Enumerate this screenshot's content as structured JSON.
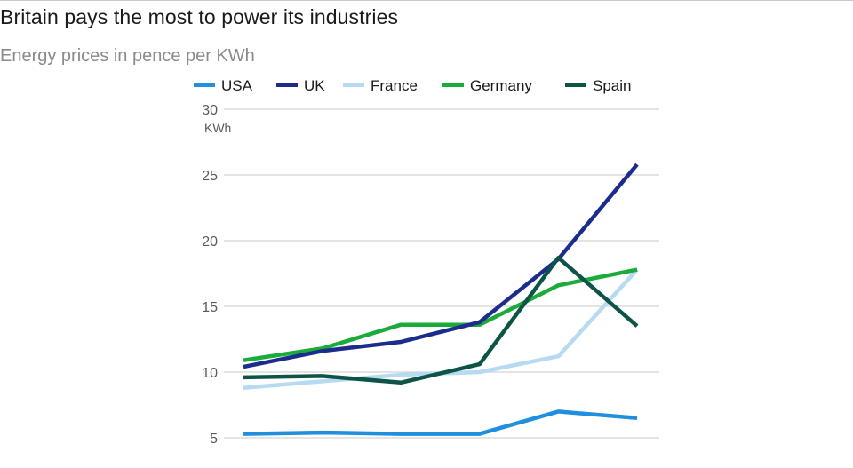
{
  "header": {
    "title": "Britain pays the most to power its industries",
    "subtitle": "Energy prices in pence per KWh"
  },
  "chart_data": {
    "type": "line",
    "title": "Britain pays the most to power its industries",
    "subtitle": "Energy prices in pence per KWh",
    "xlabel": "",
    "ylabel": "KWh",
    "ylim": [
      5,
      30
    ],
    "yticks": [
      5,
      10,
      15,
      20,
      25,
      30
    ],
    "ytick_labels": [
      "5",
      "10",
      "15",
      "20",
      "25",
      "30"
    ],
    "x": [
      1,
      2,
      3,
      4,
      5,
      6
    ],
    "grid": true,
    "legend_position": "top",
    "series": [
      {
        "name": "USA",
        "color": "#1f8fde",
        "values": [
          5.3,
          5.4,
          5.3,
          5.3,
          7.0,
          6.5
        ]
      },
      {
        "name": "UK",
        "color": "#1c2c8c",
        "values": [
          10.4,
          11.6,
          12.3,
          13.8,
          18.6,
          25.8
        ]
      },
      {
        "name": "France",
        "color": "#b6daf2",
        "values": [
          8.8,
          9.3,
          9.8,
          10.0,
          11.2,
          17.8
        ]
      },
      {
        "name": "Germany",
        "color": "#1aab3b",
        "values": [
          10.9,
          11.8,
          13.6,
          13.6,
          16.6,
          17.8
        ]
      },
      {
        "name": "Spain",
        "color": "#0d5447",
        "values": [
          9.6,
          9.7,
          9.2,
          10.6,
          18.7,
          13.5
        ]
      }
    ]
  }
}
